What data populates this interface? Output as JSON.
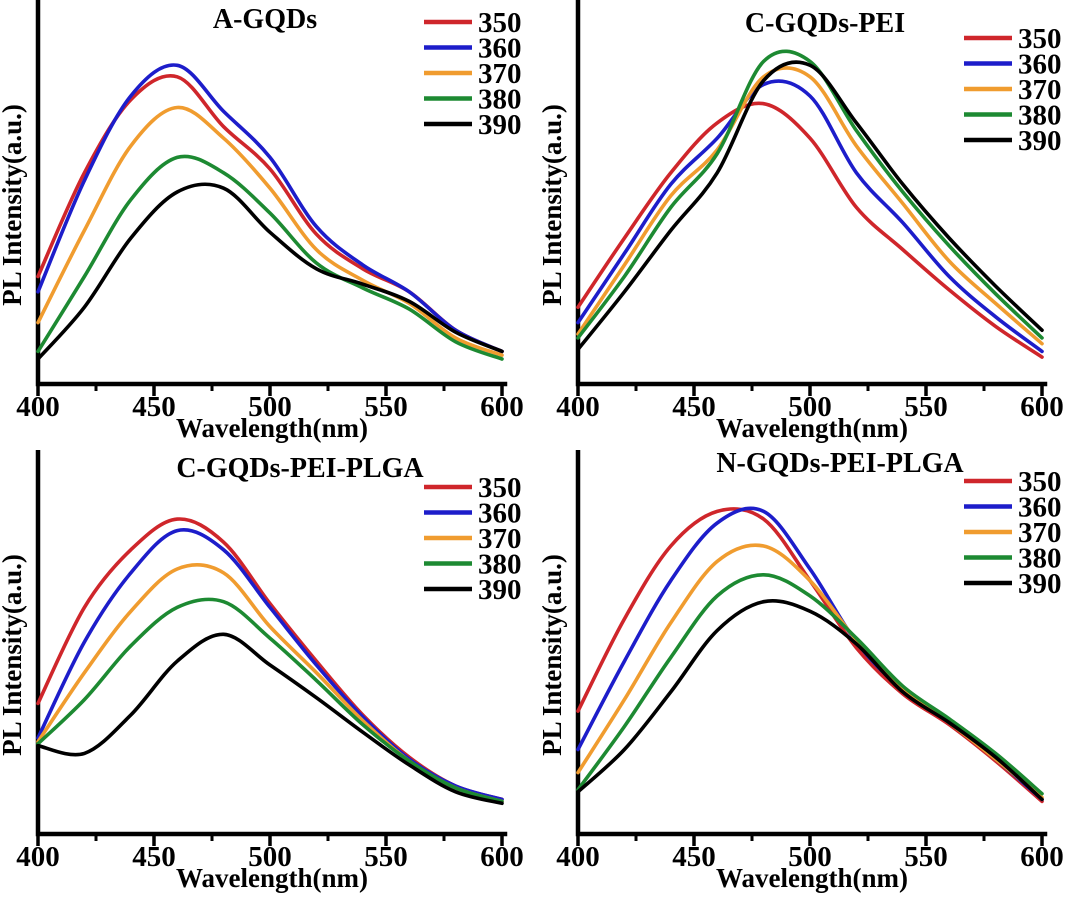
{
  "figure": {
    "background": "#ffffff",
    "layout": "2x2 grid of PL spectra panels"
  },
  "chart_data": [
    {
      "panel": "top-left",
      "type": "line",
      "title": "A-GQDs",
      "xlabel": "Wavelength(nm)",
      "ylabel": "PL Intensity(a.u.)",
      "xlim": [
        400,
        600
      ],
      "ylim": [
        0,
        100
      ],
      "grid": false,
      "legend_position": "top-right",
      "x_ticks": [
        400,
        450,
        500,
        550,
        600
      ],
      "x_minor_ticks": [
        425,
        475,
        525,
        575
      ],
      "x": [
        400,
        420,
        440,
        460,
        480,
        500,
        520,
        540,
        560,
        580,
        600
      ],
      "series": [
        {
          "name": "350",
          "color": "#cf262b",
          "values": [
            28,
            55,
            74,
            80,
            67,
            56,
            39,
            30,
            24,
            14,
            8.5
          ]
        },
        {
          "name": "360",
          "color": "#1d1dca",
          "values": [
            24,
            53,
            75,
            83,
            71,
            59,
            41,
            31,
            24,
            14,
            8.5
          ]
        },
        {
          "name": "370",
          "color": "#f09c2f",
          "values": [
            16,
            40,
            62,
            72,
            64,
            51,
            35,
            27,
            21,
            12,
            7.5
          ]
        },
        {
          "name": "380",
          "color": "#1d8a32",
          "values": [
            8.5,
            28,
            48,
            59,
            55,
            44.5,
            31.5,
            25,
            19.5,
            11,
            6.5
          ]
        },
        {
          "name": "390",
          "color": "#000000",
          "values": [
            6.5,
            20,
            38,
            50,
            51,
            39.5,
            30,
            26,
            21.5,
            13.5,
            8.5
          ]
        }
      ]
    },
    {
      "panel": "top-right",
      "type": "line",
      "title": "C-GQDs-PEI",
      "xlabel": "Wavelength(nm)",
      "ylabel": "PL Intensity(a.u.)",
      "xlim": [
        400,
        600
      ],
      "ylim": [
        0,
        100
      ],
      "grid": false,
      "legend_position": "top-right",
      "x_ticks": [
        400,
        450,
        500,
        550,
        600
      ],
      "x_minor_ticks": [
        425,
        475,
        525,
        575
      ],
      "x": [
        400,
        420,
        440,
        460,
        480,
        500,
        520,
        540,
        560,
        580,
        600
      ],
      "series": [
        {
          "name": "350",
          "color": "#cf262b",
          "values": [
            20,
            38,
            55,
            68,
            73,
            64,
            46,
            35,
            24.5,
            15,
            7
          ]
        },
        {
          "name": "360",
          "color": "#1d1dca",
          "values": [
            16,
            34,
            52,
            64,
            78,
            75,
            55,
            42,
            28,
            17.5,
            8.5
          ]
        },
        {
          "name": "370",
          "color": "#f09c2f",
          "values": [
            13,
            31,
            49,
            61,
            80,
            80,
            62,
            47,
            32,
            21,
            10.5
          ]
        },
        {
          "name": "380",
          "color": "#1d8a32",
          "values": [
            12,
            28,
            46,
            60,
            84,
            84,
            66,
            50,
            36,
            23.5,
            12
          ]
        },
        {
          "name": "390",
          "color": "#000000",
          "values": [
            9,
            24,
            40,
            55,
            79,
            83,
            68,
            52,
            38,
            25.5,
            14
          ]
        }
      ]
    },
    {
      "panel": "bottom-left",
      "type": "line",
      "title": "C-GQDs-PEI-PLGA",
      "xlabel": "Wavelength(nm)",
      "ylabel": "PL Intensity(a.u.)",
      "xlim": [
        400,
        600
      ],
      "ylim": [
        0,
        100
      ],
      "grid": false,
      "legend_position": "top-right",
      "x_ticks": [
        400,
        450,
        500,
        550,
        600
      ],
      "x_minor_ticks": [
        425,
        475,
        525,
        575
      ],
      "x": [
        400,
        420,
        440,
        460,
        480,
        500,
        520,
        540,
        560,
        580,
        600
      ],
      "series": [
        {
          "name": "350",
          "color": "#cf262b",
          "values": [
            34,
            59,
            74,
            82,
            76,
            60,
            45,
            31,
            20,
            12.5,
            9
          ]
        },
        {
          "name": "360",
          "color": "#1d1dca",
          "values": [
            25,
            50,
            68,
            79,
            74,
            59,
            44,
            30.5,
            19.5,
            12.5,
            9
          ]
        },
        {
          "name": "370",
          "color": "#f09c2f",
          "values": [
            24,
            42,
            58,
            69,
            68,
            54,
            42,
            29.5,
            19,
            12,
            8.5
          ]
        },
        {
          "name": "380",
          "color": "#1d8a32",
          "values": [
            23.5,
            35,
            49,
            59,
            60.5,
            51,
            40,
            28.5,
            19,
            12,
            8.5
          ]
        },
        {
          "name": "390",
          "color": "#000000",
          "values": [
            23,
            21,
            31,
            45,
            52,
            44,
            35.5,
            26.5,
            18,
            11,
            8
          ]
        }
      ]
    },
    {
      "panel": "bottom-right",
      "type": "line",
      "title": "N-GQDs-PEI-PLGA",
      "xlabel": "Wavelength(nm)",
      "ylabel": "PL Intensity(a.u.)",
      "xlim": [
        400,
        600
      ],
      "ylim": [
        0,
        100
      ],
      "grid": false,
      "legend_position": "top-right",
      "x_ticks": [
        400,
        450,
        500,
        550,
        600
      ],
      "x_minor_ticks": [
        425,
        475,
        525,
        575
      ],
      "x": [
        400,
        420,
        440,
        460,
        480,
        500,
        520,
        540,
        560,
        580,
        600
      ],
      "series": [
        {
          "name": "350",
          "color": "#cf262b",
          "values": [
            32,
            56,
            75,
            84,
            82,
            66,
            48.5,
            36.5,
            28.5,
            19,
            8.5
          ]
        },
        {
          "name": "360",
          "color": "#1d1dca",
          "values": [
            22,
            45,
            66,
            81,
            84,
            69,
            50,
            37.5,
            29,
            19.5,
            9
          ]
        },
        {
          "name": "370",
          "color": "#f09c2f",
          "values": [
            16,
            35,
            55,
            71,
            75,
            66,
            50.5,
            38,
            29,
            19.5,
            9.5
          ]
        },
        {
          "name": "380",
          "color": "#1d8a32",
          "values": [
            11.5,
            28,
            46,
            62,
            67.5,
            62,
            51,
            38.5,
            30,
            21,
            10.5
          ]
        },
        {
          "name": "390",
          "color": "#000000",
          "values": [
            11,
            22,
            37,
            53,
            60.5,
            58,
            49.5,
            37,
            29,
            20,
            9
          ]
        }
      ]
    }
  ]
}
